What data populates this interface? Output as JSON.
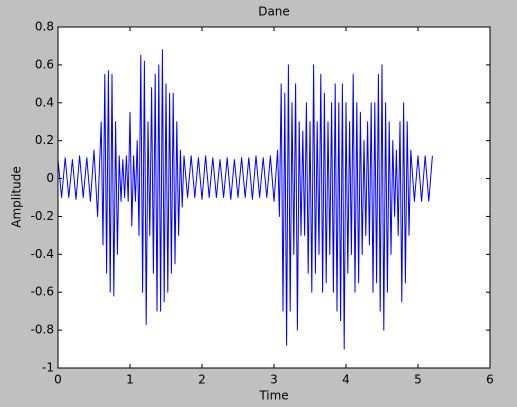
{
  "chart_data": {
    "type": "line",
    "title": "Dane",
    "x_label": "Time",
    "y_label": "Amplitude",
    "x": [
      0,
      0.05,
      0.1,
      0.15,
      0.2,
      0.25,
      0.3,
      0.35,
      0.4,
      0.45,
      0.5,
      0.55,
      0.6,
      0.625,
      0.65,
      0.675,
      0.7,
      0.725,
      0.75,
      0.775,
      0.8,
      0.825,
      0.85,
      0.875,
      0.9,
      0.925,
      0.95,
      0.975,
      1.0,
      1.025,
      1.05,
      1.075,
      1.1,
      1.125,
      1.15,
      1.175,
      1.2,
      1.225,
      1.25,
      1.275,
      1.3,
      1.325,
      1.35,
      1.375,
      1.4,
      1.425,
      1.45,
      1.475,
      1.5,
      1.525,
      1.55,
      1.575,
      1.6,
      1.625,
      1.65,
      1.675,
      1.7,
      1.725,
      1.75,
      1.8,
      1.85,
      1.9,
      1.95,
      2.0,
      2.05,
      2.1,
      2.15,
      2.2,
      2.25,
      2.3,
      2.35,
      2.4,
      2.45,
      2.5,
      2.55,
      2.6,
      2.65,
      2.7,
      2.75,
      2.8,
      2.85,
      2.9,
      2.95,
      3.0,
      3.05,
      3.075,
      3.1,
      3.125,
      3.15,
      3.175,
      3.2,
      3.225,
      3.25,
      3.275,
      3.3,
      3.325,
      3.35,
      3.375,
      3.4,
      3.425,
      3.45,
      3.475,
      3.5,
      3.525,
      3.55,
      3.575,
      3.6,
      3.625,
      3.65,
      3.675,
      3.7,
      3.725,
      3.75,
      3.775,
      3.8,
      3.825,
      3.85,
      3.875,
      3.9,
      3.925,
      3.95,
      3.975,
      4.0,
      4.025,
      4.05,
      4.075,
      4.1,
      4.125,
      4.15,
      4.175,
      4.2,
      4.225,
      4.25,
      4.275,
      4.3,
      4.325,
      4.35,
      4.375,
      4.4,
      4.425,
      4.45,
      4.475,
      4.5,
      4.525,
      4.55,
      4.575,
      4.6,
      4.625,
      4.65,
      4.675,
      4.7,
      4.725,
      4.75,
      4.775,
      4.8,
      4.825,
      4.85,
      4.875,
      4.9,
      4.95,
      5.0,
      5.05,
      5.1,
      5.15,
      5.2
    ],
    "series": [
      {
        "color": "#0000ff",
        "values": [
          0.1,
          -0.1,
          0.11,
          -0.1,
          0.1,
          -0.11,
          0.12,
          -0.1,
          0.11,
          -0.12,
          0.15,
          -0.2,
          0.3,
          -0.35,
          0.55,
          -0.5,
          0.57,
          -0.6,
          0.55,
          -0.62,
          0.3,
          -0.4,
          0.12,
          -0.12,
          0.1,
          -0.1,
          0.12,
          -0.12,
          0.35,
          -0.25,
          0.12,
          -0.12,
          0.2,
          -0.3,
          0.65,
          -0.6,
          0.62,
          -0.77,
          0.3,
          -0.3,
          0.48,
          -0.5,
          0.55,
          -0.7,
          0.6,
          -0.7,
          0.68,
          -0.65,
          0.5,
          -0.6,
          0.45,
          -0.5,
          0.45,
          -0.45,
          0.3,
          -0.3,
          0.15,
          -0.15,
          0.12,
          -0.1,
          0.12,
          -0.1,
          0.11,
          -0.11,
          0.12,
          -0.1,
          0.11,
          -0.1,
          0.1,
          -0.1,
          0.11,
          -0.11,
          0.1,
          -0.1,
          0.11,
          -0.1,
          0.11,
          -0.11,
          0.12,
          -0.1,
          0.11,
          -0.1,
          0.12,
          -0.12,
          0.15,
          -0.2,
          0.5,
          -0.7,
          0.45,
          -0.88,
          0.6,
          -0.7,
          0.4,
          -0.4,
          0.5,
          -0.8,
          0.3,
          -0.3,
          0.25,
          -0.3,
          0.4,
          -0.5,
          0.3,
          -0.6,
          0.6,
          -0.5,
          0.3,
          -0.4,
          0.55,
          -0.6,
          0.45,
          -0.55,
          0.3,
          -0.4,
          0.4,
          -0.6,
          0.5,
          -0.7,
          0.4,
          -0.75,
          0.5,
          -0.9,
          0.4,
          -0.5,
          0.3,
          -0.4,
          0.55,
          -0.6,
          0.4,
          -0.55,
          0.35,
          -0.4,
          0.2,
          -0.3,
          0.3,
          -0.35,
          0.4,
          -0.6,
          0.4,
          -0.55,
          0.55,
          -0.7,
          0.6,
          -0.8,
          0.4,
          -0.6,
          0.3,
          -0.4,
          0.2,
          -0.2,
          0.15,
          -0.3,
          0.3,
          -0.65,
          0.4,
          -0.55,
          0.3,
          -0.3,
          0.15,
          -0.12,
          0.12,
          -0.12,
          0.12,
          -0.12,
          0.12
        ]
      }
    ],
    "xlim": [
      0,
      6
    ],
    "xticks": [
      0,
      1,
      2,
      3,
      4,
      5,
      6
    ],
    "ylim": [
      -1,
      0.8
    ],
    "yticks": [
      -1,
      -0.8,
      -0.6,
      -0.4,
      -0.2,
      0,
      0.2,
      0.4,
      0.6,
      0.8
    ],
    "grid": false
  }
}
